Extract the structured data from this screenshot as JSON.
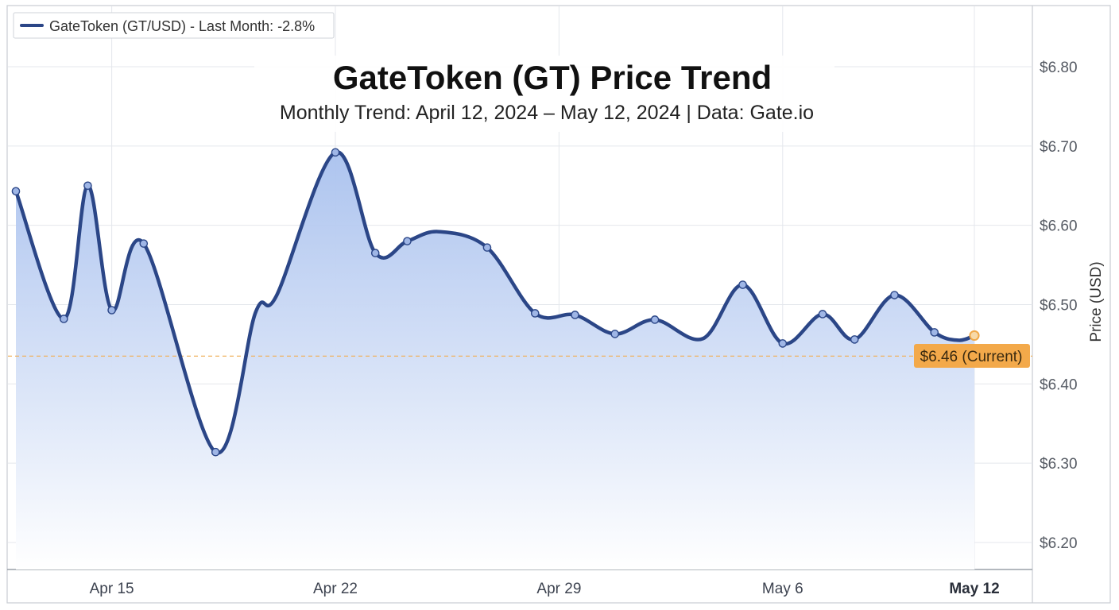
{
  "chart_data": {
    "type": "line",
    "title": "GateToken (GT) Price Trend",
    "subtitle": "Monthly Trend: April 12, 2024 – May 12, 2024 | Data: Gate.io",
    "ylabel": "Price (USD)",
    "xlabel": "",
    "ylim": [
      6.15,
      6.88
    ],
    "xlim": [
      "2024-04-12",
      "2024-05-12"
    ],
    "grid": true,
    "y_axis_side": "right",
    "legend": {
      "position": "top-left",
      "label": "GateToken (GT/USD) - Last Month: -2.8%"
    },
    "x_ticks": [
      {
        "date": "2024-04-15",
        "label": "Apr 15",
        "bold": false
      },
      {
        "date": "2024-04-22",
        "label": "Apr 22",
        "bold": false
      },
      {
        "date": "2024-04-29",
        "label": "Apr 29",
        "bold": false
      },
      {
        "date": "2024-05-06",
        "label": "May 6",
        "bold": false
      },
      {
        "date": "2024-05-12",
        "label": "May 12",
        "bold": true
      }
    ],
    "y_ticks": [
      {
        "value": 6.2,
        "label": "$6.20"
      },
      {
        "value": 6.3,
        "label": "$6.30"
      },
      {
        "value": 6.4,
        "label": "$6.40"
      },
      {
        "value": 6.5,
        "label": "$6.50"
      },
      {
        "value": 6.6,
        "label": "$6.60"
      },
      {
        "value": 6.7,
        "label": "$6.70"
      },
      {
        "value": 6.8,
        "label": "$6.80"
      }
    ],
    "series": [
      {
        "name": "GateToken (GT/USD) - Last Month: -2.8%",
        "color": "#2b4687",
        "points": [
          {
            "x": "2024-04-12T00:00",
            "y": 6.643
          },
          {
            "x": "2024-04-13T12:00",
            "y": 6.482
          },
          {
            "x": "2024-04-14T06:00",
            "y": 6.65
          },
          {
            "x": "2024-04-15T00:00",
            "y": 6.493
          },
          {
            "x": "2024-04-16T00:00",
            "y": 6.577
          },
          {
            "x": "2024-04-18T06:00",
            "y": 6.314
          },
          {
            "x": "2024-04-19T12:00",
            "y": 6.49
          },
          {
            "x": "2024-04-20T04:00",
            "y": 6.512
          },
          {
            "x": "2024-04-22T00:00",
            "y": 6.692
          },
          {
            "x": "2024-04-23T06:00",
            "y": 6.565
          },
          {
            "x": "2024-04-24T06:00",
            "y": 6.58
          },
          {
            "x": "2024-04-25T06:00",
            "y": 6.592
          },
          {
            "x": "2024-04-26T18:00",
            "y": 6.572
          },
          {
            "x": "2024-04-28T06:00",
            "y": 6.489
          },
          {
            "x": "2024-04-29T12:00",
            "y": 6.487
          },
          {
            "x": "2024-04-30T18:00",
            "y": 6.463
          },
          {
            "x": "2024-05-02T00:00",
            "y": 6.481
          },
          {
            "x": "2024-05-03T12:00",
            "y": 6.457
          },
          {
            "x": "2024-05-04T18:00",
            "y": 6.525
          },
          {
            "x": "2024-05-06T00:00",
            "y": 6.451
          },
          {
            "x": "2024-05-07T06:00",
            "y": 6.488
          },
          {
            "x": "2024-05-08T06:00",
            "y": 6.456
          },
          {
            "x": "2024-05-09T12:00",
            "y": 6.512
          },
          {
            "x": "2024-05-10T18:00",
            "y": 6.465
          },
          {
            "x": "2024-05-11T12:00",
            "y": 6.455
          },
          {
            "x": "2024-05-12T00:00",
            "y": 6.461
          }
        ]
      }
    ],
    "markers": [
      {
        "x": "2024-04-12T00:00",
        "y": 6.643
      },
      {
        "x": "2024-04-13T12:00",
        "y": 6.482
      },
      {
        "x": "2024-04-14T06:00",
        "y": 6.65
      },
      {
        "x": "2024-04-15T00:00",
        "y": 6.493
      },
      {
        "x": "2024-04-16T00:00",
        "y": 6.577
      },
      {
        "x": "2024-04-18T06:00",
        "y": 6.314
      },
      {
        "x": "2024-04-22T00:00",
        "y": 6.692
      },
      {
        "x": "2024-04-23T06:00",
        "y": 6.565
      },
      {
        "x": "2024-04-24T06:00",
        "y": 6.58
      },
      {
        "x": "2024-04-26T18:00",
        "y": 6.572
      },
      {
        "x": "2024-04-28T06:00",
        "y": 6.489
      },
      {
        "x": "2024-04-29T12:00",
        "y": 6.487
      },
      {
        "x": "2024-04-30T18:00",
        "y": 6.463
      },
      {
        "x": "2024-05-02T00:00",
        "y": 6.481
      },
      {
        "x": "2024-05-04T18:00",
        "y": 6.525
      },
      {
        "x": "2024-05-06T00:00",
        "y": 6.451
      },
      {
        "x": "2024-05-07T06:00",
        "y": 6.488
      },
      {
        "x": "2024-05-08T06:00",
        "y": 6.456
      },
      {
        "x": "2024-05-09T12:00",
        "y": 6.512
      },
      {
        "x": "2024-05-10T18:00",
        "y": 6.465
      }
    ],
    "current": {
      "x": "2024-05-12T00:00",
      "y": 6.461,
      "label": "$6.46 (Current)",
      "reference_y": 6.435,
      "color": "#f0a94a"
    },
    "colors": {
      "line": "#2b4687",
      "marker_fill": "#9fb6e6",
      "area_top": "#a9c1ee",
      "area_bottom": "#ffffff",
      "grid": "#e4e7ec",
      "reference_line": "#f0b25e",
      "callout_bg": "#f3a94a"
    }
  }
}
